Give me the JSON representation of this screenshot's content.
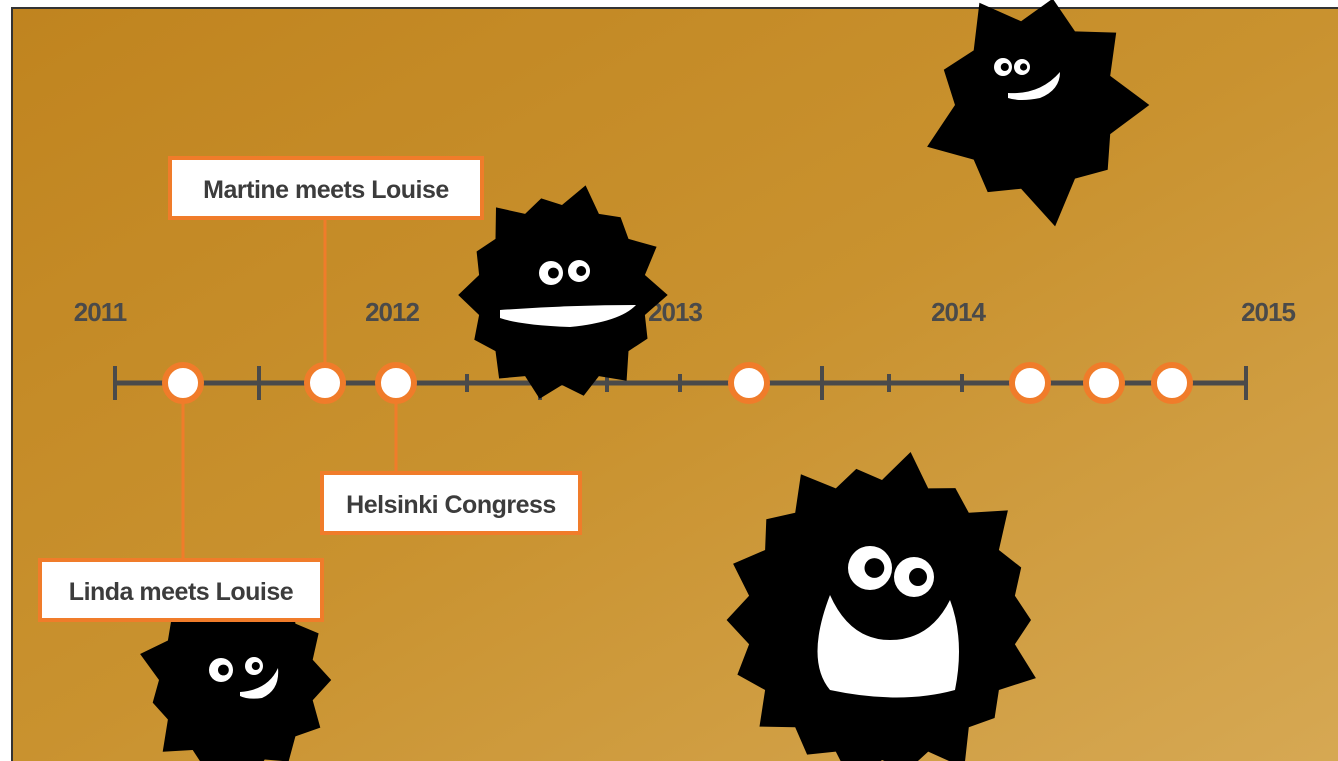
{
  "timeline": {
    "years": [
      "2011",
      "2012",
      "2013",
      "2014",
      "2015"
    ],
    "events": [
      {
        "label": "Martine meets Louise"
      },
      {
        "label": "Helsinki Congress"
      },
      {
        "label": "Linda meets Louise"
      }
    ]
  }
}
